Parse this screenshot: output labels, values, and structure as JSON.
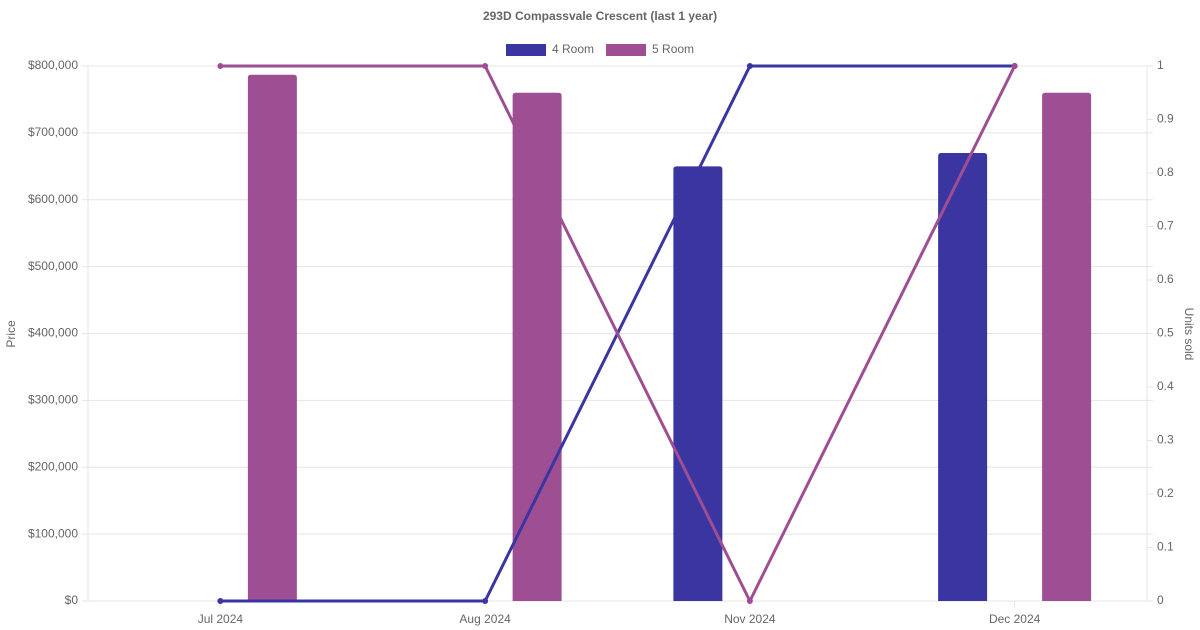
{
  "chart_data": {
    "type": "bar-line",
    "title": "293D Compassvale Crescent (last 1 year)",
    "y_label": "Price",
    "y2_label": "Units sold",
    "categories": [
      "Jul 2024",
      "Aug 2024",
      "Nov 2024",
      "Dec 2024"
    ],
    "series": [
      {
        "name": "4 Room",
        "color": "#3a35a0",
        "values": [
          null,
          null,
          650000,
          670000
        ],
        "units_sold": [
          0,
          0,
          1,
          1
        ]
      },
      {
        "name": "5 Room",
        "color": "#9e4f93",
        "values": [
          787000,
          760000,
          null,
          760000
        ],
        "units_sold": [
          1,
          1,
          0,
          1
        ]
      }
    ],
    "ylim": [
      0,
      800000
    ],
    "yticks": [
      {
        "value": 0,
        "label": "$0"
      },
      {
        "value": 100000,
        "label": "$100,000"
      },
      {
        "value": 200000,
        "label": "$200,000"
      },
      {
        "value": 300000,
        "label": "$300,000"
      },
      {
        "value": 400000,
        "label": "$400,000"
      },
      {
        "value": 500000,
        "label": "$500,000"
      },
      {
        "value": 600000,
        "label": "$600,000"
      },
      {
        "value": 700000,
        "label": "$700,000"
      },
      {
        "value": 800000,
        "label": "$800,000"
      }
    ],
    "y2lim": [
      0,
      1
    ],
    "y2ticks": [
      0,
      0.1,
      0.2,
      0.3,
      0.4,
      0.5,
      0.6,
      0.7,
      0.8,
      0.9,
      1
    ],
    "grid": true,
    "legend": "top"
  }
}
